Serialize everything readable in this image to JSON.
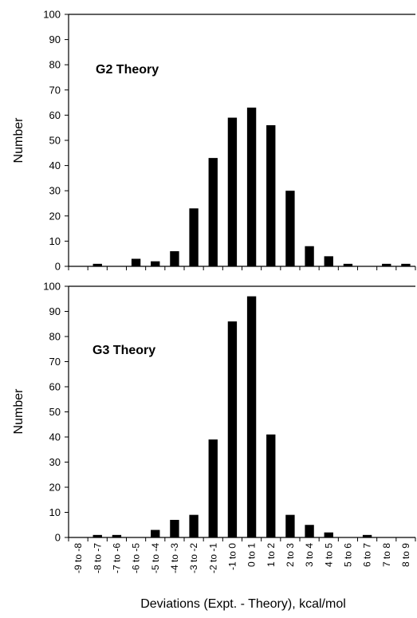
{
  "chart_data": [
    {
      "type": "bar",
      "title": "G2 Theory",
      "ylabel": "Number",
      "ylim": [
        0,
        100
      ],
      "yticks": [
        0,
        10,
        20,
        30,
        40,
        50,
        60,
        70,
        80,
        90,
        100
      ],
      "categories": [
        "-9 to -8",
        "-8 to -7",
        "-7 to -6",
        "-6 to -5",
        "-5 to -4",
        "-4 to -3",
        "-3 to -2",
        "-2 to -1",
        "-1 to 0",
        "0 to 1",
        "1 to 2",
        "2 to 3",
        "3 to 4",
        "4 to 5",
        "5 to 6",
        "6 to 7",
        "7 to 8",
        "8 to 9"
      ],
      "values": [
        0,
        1,
        0,
        3,
        2,
        6,
        23,
        43,
        59,
        63,
        56,
        30,
        8,
        4,
        1,
        0,
        1,
        1
      ],
      "color": "#000000"
    },
    {
      "type": "bar",
      "title": "G3 Theory",
      "ylabel": "Number",
      "xlabel": "Deviations (Expt. - Theory), kcal/mol",
      "ylim": [
        0,
        100
      ],
      "yticks": [
        0,
        10,
        20,
        30,
        40,
        50,
        60,
        70,
        80,
        90,
        100
      ],
      "categories": [
        "-9 to -8",
        "-8 to -7",
        "-7 to -6",
        "-6 to -5",
        "-5 to -4",
        "-4 to -3",
        "-3 to -2",
        "-2 to -1",
        "-1 to 0",
        "0 to 1",
        "1 to 2",
        "2 to 3",
        "3 to 4",
        "4 to 5",
        "5 to 6",
        "6 to 7",
        "7 to 8",
        "8 to 9"
      ],
      "values": [
        0,
        1,
        1,
        0,
        3,
        7,
        9,
        39,
        86,
        96,
        41,
        9,
        5,
        2,
        0,
        1,
        0,
        0
      ],
      "color": "#000000"
    }
  ]
}
